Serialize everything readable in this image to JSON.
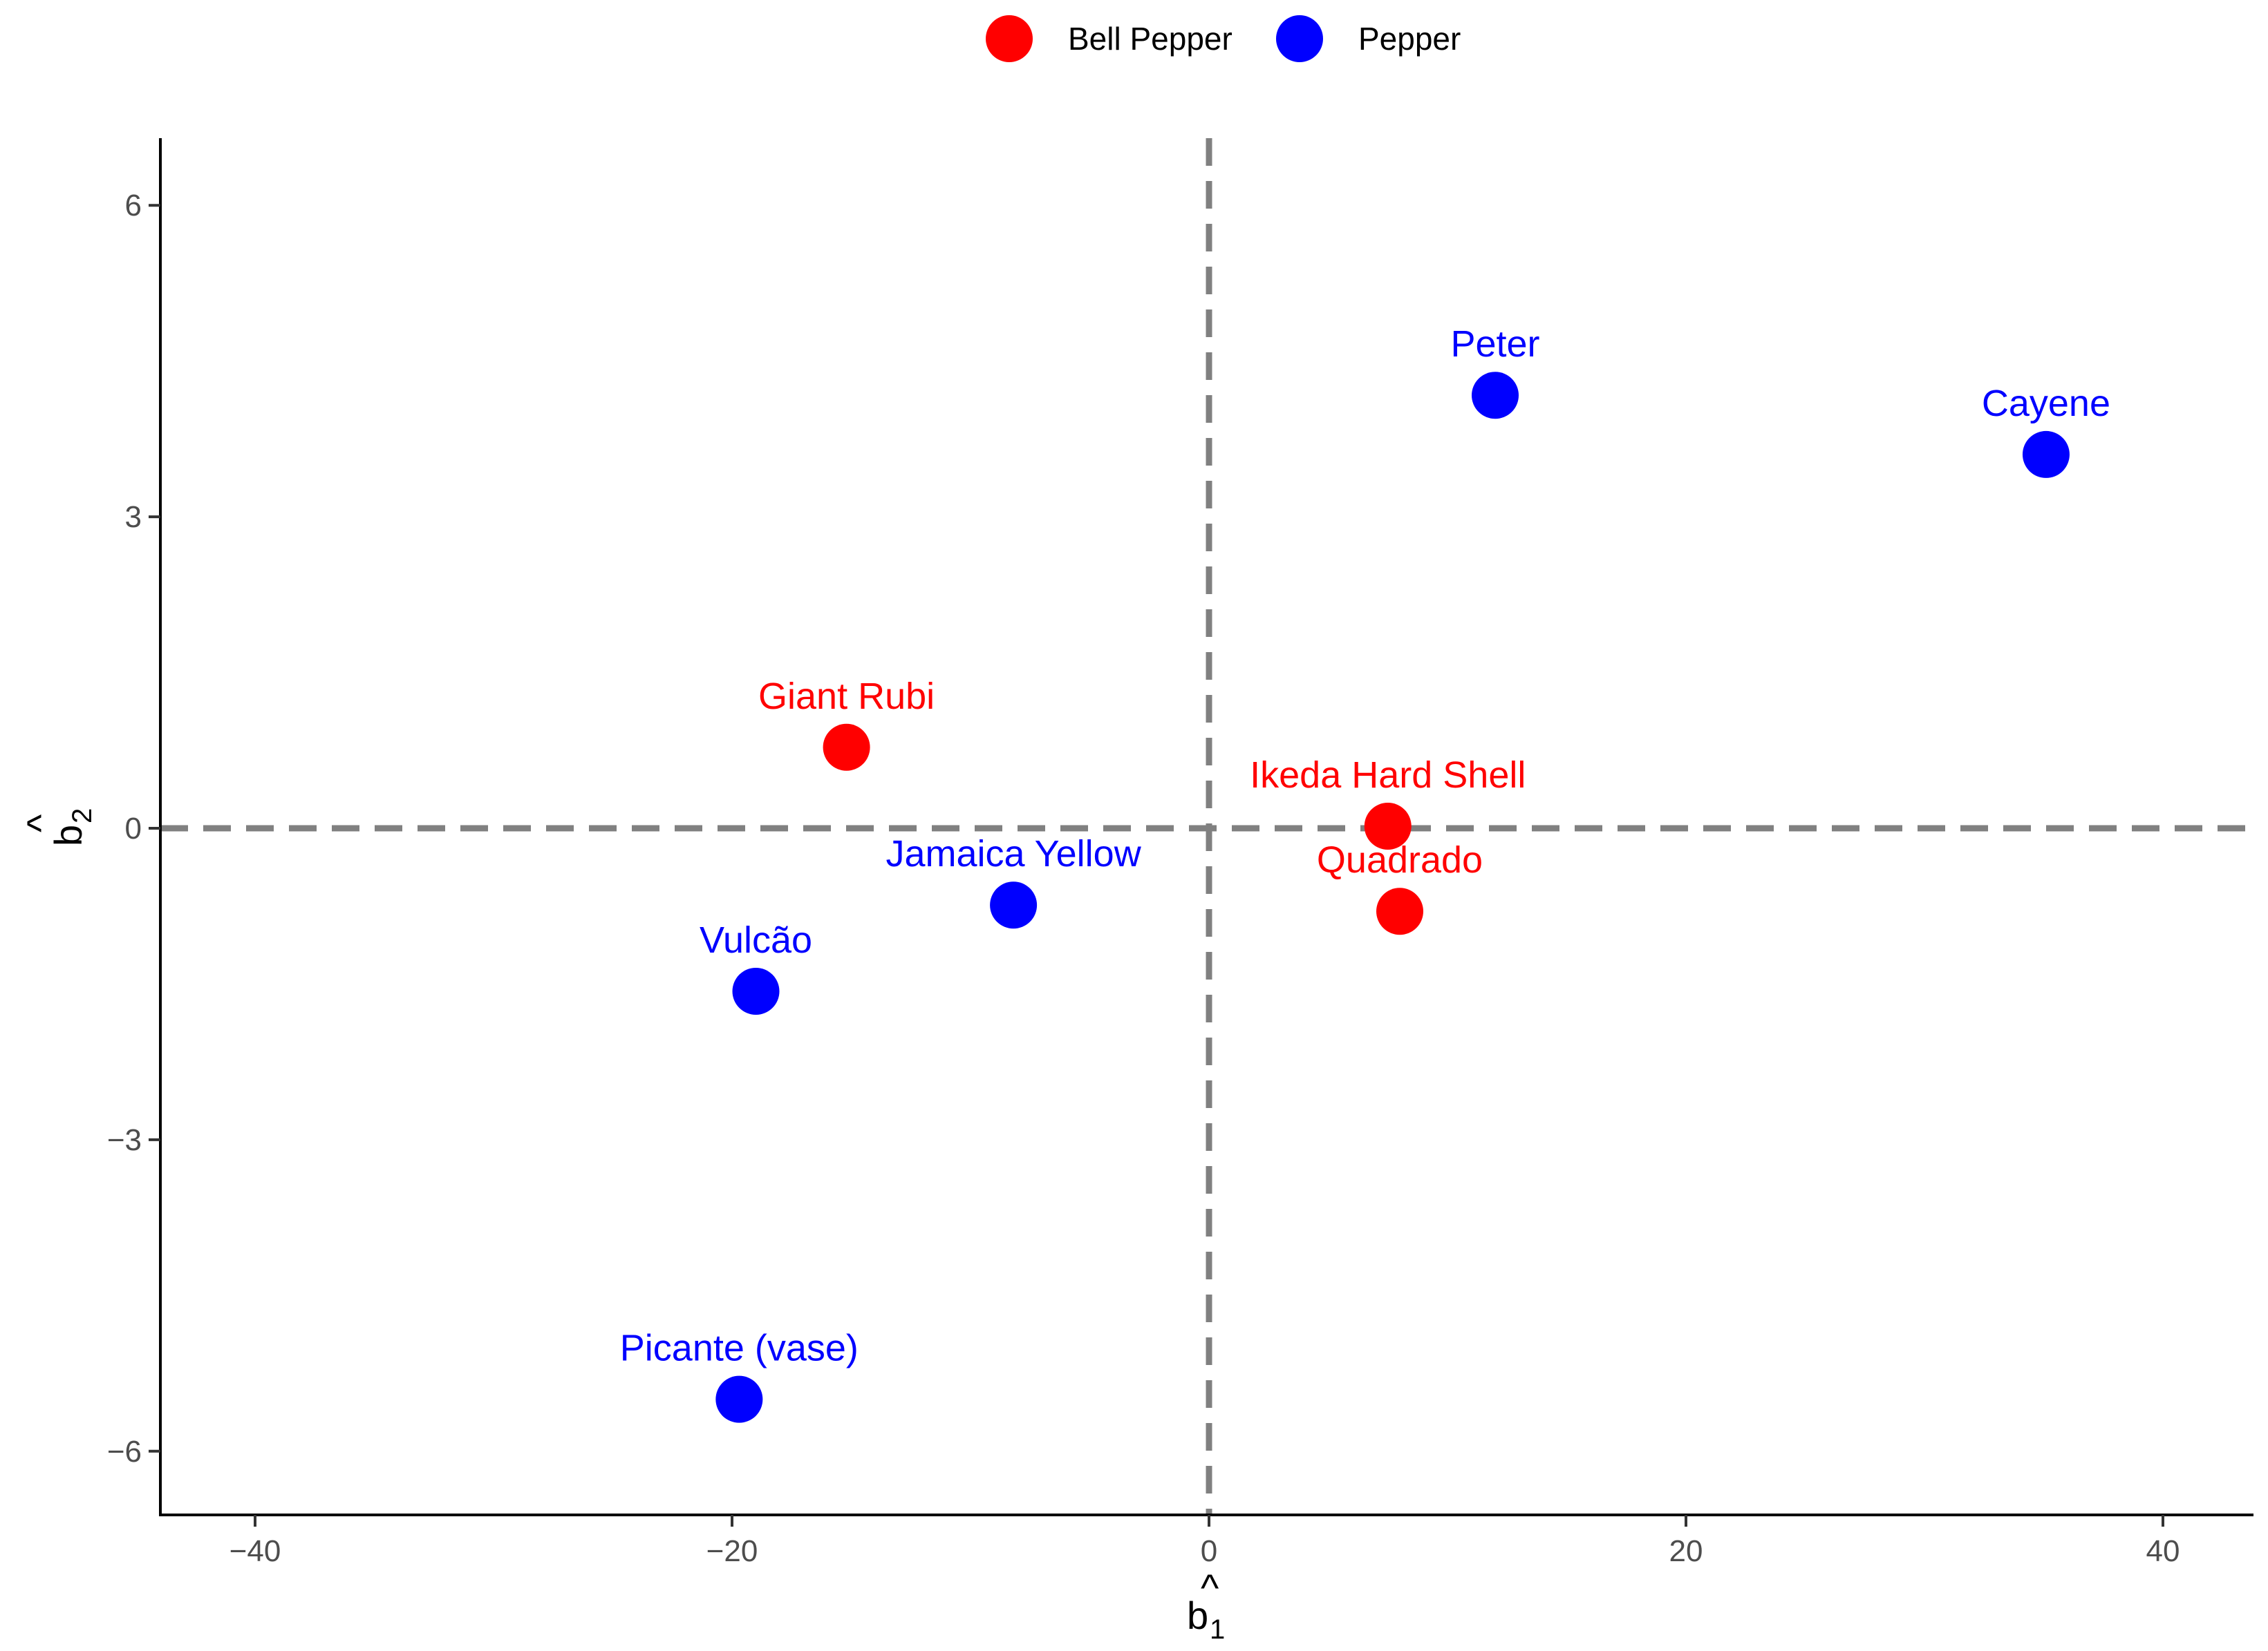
{
  "chart_data": {
    "type": "scatter",
    "title": "",
    "xlabel": {
      "main": "b",
      "hat": "^",
      "sub": "1"
    },
    "ylabel": {
      "main": "b",
      "hat": "^",
      "sub": "2"
    },
    "xlim": [
      -44,
      44
    ],
    "ylim": [
      -6.6,
      6.6
    ],
    "xticks": [
      -40,
      -20,
      0,
      20,
      40
    ],
    "xtick_labels": [
      "−40",
      "−20",
      "0",
      "20",
      "40"
    ],
    "yticks": [
      -6,
      -3,
      0,
      3,
      6
    ],
    "ytick_labels": [
      "−6",
      "−3",
      "0",
      "3",
      "6"
    ],
    "reference_lines": {
      "x": 0,
      "y": 0,
      "style": "dashed",
      "color": "#808080"
    },
    "legend": {
      "position": "top",
      "entries": [
        {
          "name": "Bell Pepper",
          "color": "#ff0000"
        },
        {
          "name": "Pepper",
          "color": "#0000ff"
        }
      ]
    },
    "series": [
      {
        "name": "Bell Pepper",
        "color": "#ff0000",
        "points": [
          {
            "label": "Giant Rubi",
            "x": -15.2,
            "y": 0.78
          },
          {
            "label": "Ikeda Hard Shell",
            "x": 7.5,
            "y": 0.02
          },
          {
            "label": "Quadrado",
            "x": 8.0,
            "y": -0.8
          }
        ]
      },
      {
        "name": "Pepper",
        "color": "#0000ff",
        "points": [
          {
            "label": "Peter",
            "x": 12.0,
            "y": 4.17
          },
          {
            "label": "Cayene",
            "x": 35.1,
            "y": 3.6
          },
          {
            "label": "Jamaica Yellow",
            "x": -8.2,
            "y": -0.74
          },
          {
            "label": "Vulcão",
            "x": -19.0,
            "y": -1.57
          },
          {
            "label": "Picante (vase)",
            "x": -19.7,
            "y": -5.5
          }
        ]
      }
    ]
  }
}
